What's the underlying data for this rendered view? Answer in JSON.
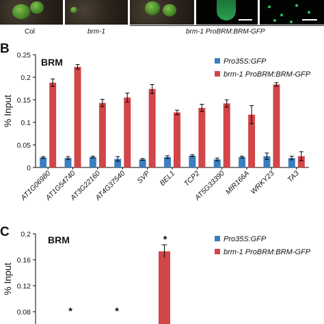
{
  "colors": {
    "gfp_control": "#3a7fc1",
    "brm_gfp": "#d24548",
    "errorbar": "#000000"
  },
  "top_strip": {
    "genotypes": [
      "Col",
      "brm-1",
      "brm-1 ProBRM:BRM-GFP"
    ]
  },
  "panel_b": {
    "letter": "B",
    "chart_data": {
      "type": "bar",
      "title": "BRM",
      "ylabel": "% Input",
      "xlabel": "",
      "ylim": [
        0,
        0.25
      ],
      "yticks": [
        "0",
        "0.05",
        "0.1",
        "0.15",
        "0.2",
        "0.25"
      ],
      "ytick_values": [
        0,
        0.05,
        0.1,
        0.15,
        0.2,
        0.25
      ],
      "grid": false,
      "legend_position": "top-right",
      "categories": [
        "AT1G06980",
        "AT1G54740",
        "AT3G22160",
        "AT4G37540",
        "SVP",
        "BEL1",
        "TCP2",
        "AT5G33390",
        "MIR166A",
        "WRKY23",
        "TA3"
      ],
      "series": [
        {
          "name": "Pro35S:GFP",
          "color": "#3a7fc1",
          "values": [
            0.022,
            0.021,
            0.023,
            0.019,
            0.018,
            0.023,
            0.026,
            0.018,
            0.023,
            0.025,
            0.021
          ],
          "errors": [
            0.002,
            0.003,
            0.002,
            0.005,
            0.002,
            0.003,
            0.002,
            0.003,
            0.002,
            0.007,
            0.004
          ]
        },
        {
          "name": "brm-1 ProBRM:BRM-GFP",
          "color": "#d24548",
          "values": [
            0.188,
            0.223,
            0.143,
            0.155,
            0.174,
            0.122,
            0.132,
            0.142,
            0.117,
            0.184,
            0.025
          ],
          "errors": [
            0.008,
            0.005,
            0.008,
            0.01,
            0.01,
            0.005,
            0.008,
            0.008,
            0.02,
            0.004,
            0.01
          ]
        }
      ]
    }
  },
  "panel_c": {
    "letter": "C",
    "chart_data": {
      "type": "bar",
      "title": "BRM",
      "ylabel": "% Input",
      "xlabel": "",
      "ylim": [
        0.08,
        0.2
      ],
      "yticks": [
        "0.08",
        "0.12",
        "0.16",
        "0.2"
      ],
      "ytick_values": [
        0.08,
        0.12,
        0.16,
        0.2
      ],
      "grid": false,
      "legend_position": "top-right",
      "series": [
        {
          "name": "Pro35S:GFP",
          "color": "#3a7fc1"
        },
        {
          "name": "brm-1 ProBRM:BRM-GFP",
          "color": "#d24548"
        }
      ],
      "visible_bars": [
        {
          "series": "brm-1 ProBRM:BRM-GFP",
          "value": 0.173,
          "error": 0.01,
          "annotation": "*"
        }
      ],
      "annotations": [
        "*",
        "*",
        "*"
      ]
    }
  }
}
